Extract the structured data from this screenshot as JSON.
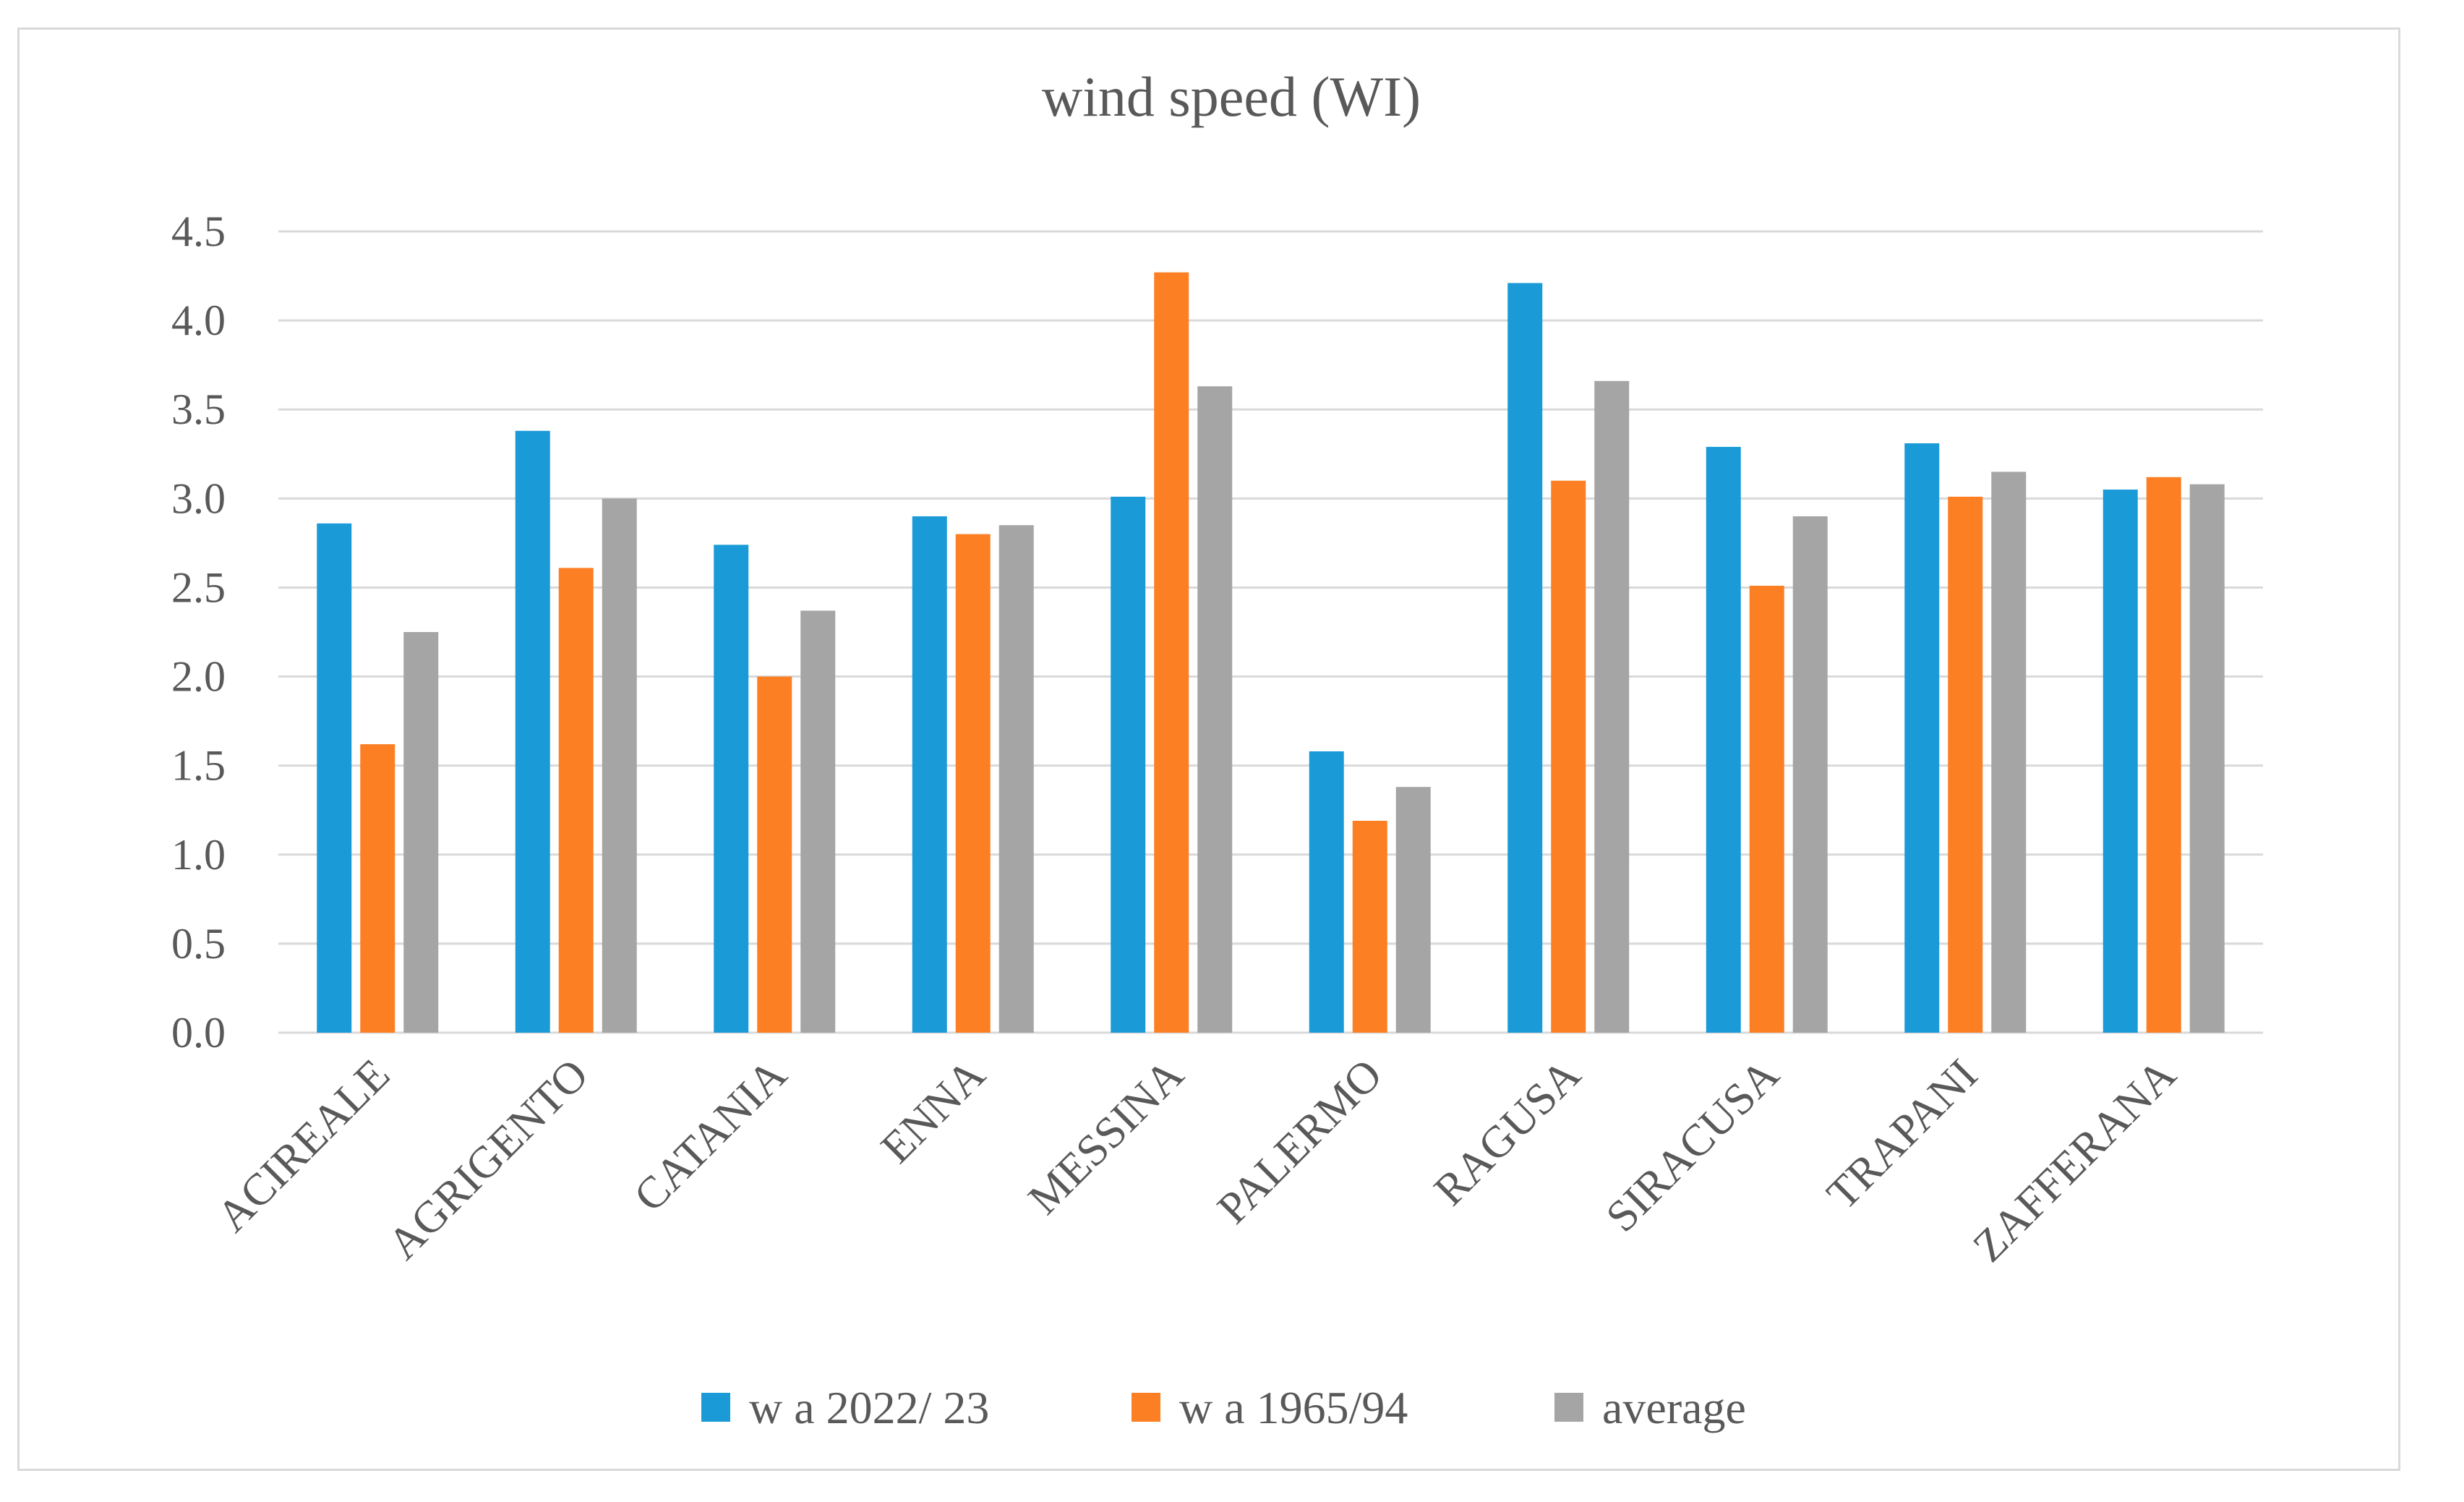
{
  "chart_data": {
    "type": "bar",
    "title": "wind speed (WI)",
    "xlabel": "",
    "ylabel": "",
    "ylim": [
      0,
      4.5
    ],
    "y_ticks": [
      "0.0",
      "0.5",
      "1.0",
      "1.5",
      "2.0",
      "2.5",
      "3.0",
      "3.5",
      "4.0",
      "4.5"
    ],
    "grid": true,
    "legend_position": "bottom",
    "categories": [
      "ACIREALE",
      "AGRIGENTO",
      "CATANIA",
      "ENNA",
      "MESSINA",
      "PALERMO",
      "RAGUSA",
      "SIRACUSA",
      "TRAPANI",
      "ZAFFERANA"
    ],
    "series": [
      {
        "name": "w a 2022/ 23",
        "color": "#1a9bd7",
        "values": [
          2.86,
          3.38,
          2.74,
          2.9,
          3.01,
          1.58,
          4.21,
          3.29,
          3.31,
          3.05
        ]
      },
      {
        "name": "w a 1965/94",
        "color": "#fd7f23",
        "values": [
          1.62,
          2.61,
          2.0,
          2.8,
          4.27,
          1.19,
          3.1,
          2.51,
          3.01,
          3.12
        ]
      },
      {
        "name": "average",
        "color": "#a5a5a5",
        "values": [
          2.25,
          3.0,
          2.37,
          2.85,
          3.63,
          1.38,
          3.66,
          2.9,
          3.15,
          3.08
        ]
      }
    ]
  }
}
